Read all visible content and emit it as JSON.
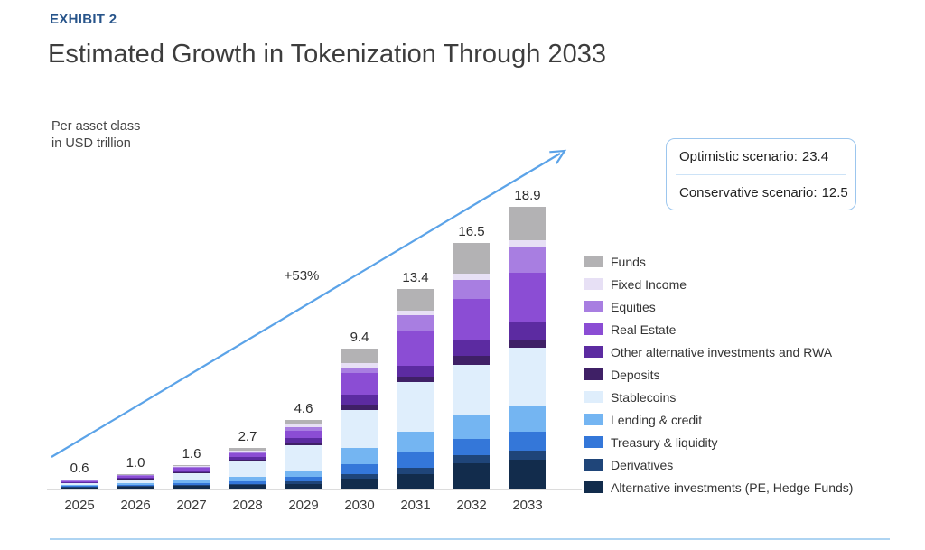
{
  "exhibit_label": "EXHIBIT 2",
  "title": "Estimated Growth in Tokenization Through 2033",
  "axis_note": "Per asset class\nin USD trillion",
  "growth_annotation": "+53%",
  "scenario_box": {
    "items": [
      {
        "label": "Optimistic scenario:",
        "value": "23.4"
      },
      {
        "label": "Conservative scenario:",
        "value": "12.5"
      }
    ]
  },
  "colors": {
    "arrow_accent": "#5ba3e8",
    "scenario_border": "#9cc6ee",
    "scenario_divider": "#cde3f7",
    "axis_line": "#dcdcdc",
    "bottom_divider": "#aed4f2",
    "exhibit_text": "#27548a"
  },
  "chart_data": {
    "type": "bar",
    "stacked": true,
    "title": "Estimated Growth in Tokenization Through 2033",
    "unit_label": "Per asset class in USD trillion",
    "categories": [
      "2025",
      "2026",
      "2027",
      "2028",
      "2029",
      "2030",
      "2031",
      "2032",
      "2033"
    ],
    "totals": [
      "0.6",
      "1.0",
      "1.6",
      "2.7",
      "4.6",
      "9.4",
      "13.4",
      "16.5",
      "18.9"
    ],
    "annotations": [
      "+53%"
    ],
    "scenarios": {
      "optimistic": 23.4,
      "conservative": 12.5
    },
    "legend_position": "right",
    "series_order": "bottom-to-top; legend shown top-to-bottom reversed",
    "series": [
      {
        "key": "alt_investments",
        "name": "Alternative investments (PE, Hedge Funds)",
        "color": "#122c4c",
        "values": [
          0.08,
          0.12,
          0.18,
          0.22,
          0.3,
          0.64,
          0.97,
          1.7,
          1.96
        ]
      },
      {
        "key": "derivatives",
        "name": "Derivatives",
        "color": "#1f4579",
        "values": [
          0.04,
          0.06,
          0.09,
          0.1,
          0.2,
          0.32,
          0.41,
          0.53,
          0.61
        ]
      },
      {
        "key": "treasury_liquidity",
        "name": "Treasury & liquidity",
        "color": "#3477d9",
        "values": [
          0.05,
          0.08,
          0.12,
          0.16,
          0.3,
          0.68,
          1.11,
          1.09,
          1.27
        ]
      },
      {
        "key": "lending_credit",
        "name": "Lending & credit",
        "color": "#74b5f2",
        "values": [
          0.06,
          0.1,
          0.16,
          0.3,
          0.4,
          1.06,
          1.32,
          1.62,
          1.68
        ]
      },
      {
        "key": "stablecoins",
        "name": "Stablecoins",
        "color": "#dfeefc",
        "values": [
          0.15,
          0.28,
          0.5,
          1.05,
          1.7,
          2.59,
          3.33,
          3.39,
          3.92
        ]
      },
      {
        "key": "deposits",
        "name": "Deposits",
        "color": "#3f2066",
        "values": [
          0.02,
          0.03,
          0.05,
          0.08,
          0.15,
          0.34,
          0.35,
          0.58,
          0.56
        ]
      },
      {
        "key": "other_alt_rwa",
        "name": "Other alternative investments and RWA",
        "color": "#5c2ba1",
        "values": [
          0.05,
          0.08,
          0.12,
          0.2,
          0.35,
          0.66,
          0.77,
          1.05,
          1.17
        ]
      },
      {
        "key": "real_estate",
        "name": "Real Estate",
        "color": "#8b4dd4",
        "values": [
          0.08,
          0.12,
          0.18,
          0.26,
          0.45,
          1.45,
          2.26,
          2.77,
          3.32
        ]
      },
      {
        "key": "equities",
        "name": "Equities",
        "color": "#a87ee1",
        "values": [
          0.03,
          0.05,
          0.08,
          0.12,
          0.3,
          0.4,
          1.13,
          1.29,
          1.68
        ]
      },
      {
        "key": "fixed_income",
        "name": "Fixed Income",
        "color": "#e7e0f5",
        "values": [
          0.02,
          0.03,
          0.04,
          0.05,
          0.15,
          0.28,
          0.28,
          0.43,
          0.5
        ]
      },
      {
        "key": "funds",
        "name": "Funds",
        "color": "#b3b2b4",
        "values": [
          0.02,
          0.05,
          0.08,
          0.16,
          0.3,
          0.98,
          1.47,
          2.05,
          2.23
        ]
      }
    ]
  }
}
